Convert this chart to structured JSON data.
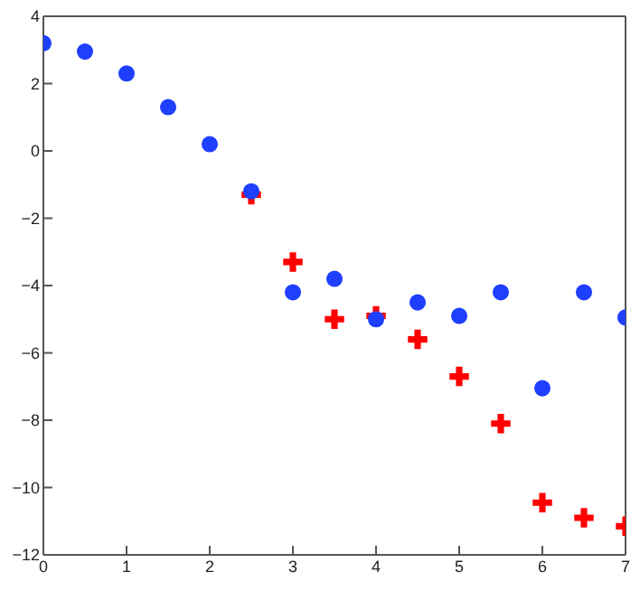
{
  "chart_data": {
    "type": "scatter",
    "x": [
      0,
      0.5,
      1,
      1.5,
      2,
      2.5,
      3,
      3.5,
      4,
      4.5,
      5,
      5.5,
      6,
      6.5,
      7
    ],
    "series": [
      {
        "color": "#ff0000",
        "marker": "cross",
        "values": [
          null,
          null,
          null,
          null,
          null,
          -1.3,
          -3.3,
          -5.0,
          -4.9,
          -5.6,
          -6.7,
          -8.1,
          -10.45,
          -10.9,
          -11.15
        ]
      },
      {
        "color": "#1f3fff",
        "marker": "circle",
        "values": [
          3.2,
          2.95,
          2.3,
          1.3,
          0.2,
          -1.2,
          -4.2,
          -3.8,
          -5.0,
          -4.5,
          -4.9,
          -4.2,
          -7.05,
          -4.2,
          -4.95
        ]
      }
    ],
    "xlim": [
      0,
      7
    ],
    "xticks": [
      0,
      1,
      2,
      3,
      4,
      5,
      6,
      7
    ],
    "ylim": [
      -12,
      4
    ],
    "yticks": [
      -12,
      -10,
      -8,
      -6,
      -4,
      -2,
      0,
      2,
      4
    ]
  }
}
